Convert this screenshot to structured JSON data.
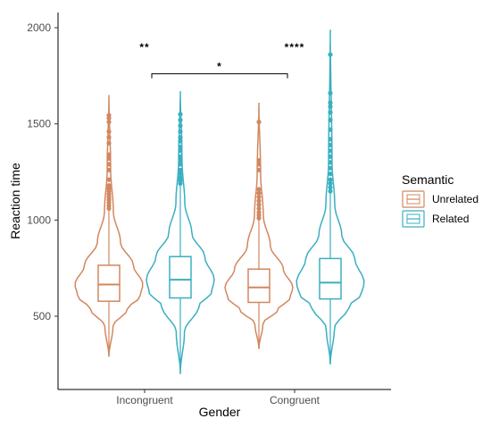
{
  "chart_data": {
    "type": "violin",
    "xlabel": "Gender",
    "ylabel": "Reaction time",
    "ylim": [
      200,
      2060
    ],
    "yticks": [
      500,
      1000,
      1500,
      2000
    ],
    "grid": false,
    "legend": {
      "title": "Semantic",
      "placement": "right",
      "entries": [
        "Unrelated",
        "Related"
      ]
    },
    "categories": [
      "Incongruent",
      "Congruent"
    ],
    "series": [
      {
        "name": "Unrelated",
        "color": "#D2875F",
        "groups": [
          {
            "category": "Incongruent",
            "min": 290,
            "max": 1650,
            "q1": 578,
            "median": 665,
            "q3": 765,
            "upper_whisker": 1050,
            "lower_whisker": 290,
            "outliers": [
              1060,
              1075,
              1090,
              1105,
              1120,
              1135,
              1150,
              1165,
              1180,
              1210,
              1260,
              1290,
              1320,
              1340,
              1400,
              1430,
              1460,
              1510,
              1530,
              1545
            ]
          },
          {
            "category": "Congruent",
            "min": 330,
            "max": 1610,
            "q1": 572,
            "median": 650,
            "q3": 745,
            "upper_whisker": 1000,
            "lower_whisker": 330,
            "outliers": [
              1010,
              1025,
              1040,
              1060,
              1080,
              1100,
              1120,
              1140,
              1160,
              1260,
              1290,
              1310,
              1510
            ]
          }
        ]
      },
      {
        "name": "Related",
        "color": "#3AAFC0",
        "groups": [
          {
            "category": "Incongruent",
            "min": 200,
            "max": 1670,
            "q1": 595,
            "median": 690,
            "q3": 810,
            "upper_whisker": 1180,
            "lower_whisker": 200,
            "outliers": [
              1190,
              1205,
              1220,
              1240,
              1260,
              1290,
              1310,
              1330,
              1360,
              1380,
              1410,
              1430,
              1460,
              1490,
              1520,
              1550
            ]
          },
          {
            "category": "Congruent",
            "min": 250,
            "max": 1990,
            "q1": 590,
            "median": 675,
            "q3": 800,
            "upper_whisker": 1140,
            "lower_whisker": 250,
            "outliers": [
              1150,
              1170,
              1190,
              1210,
              1240,
              1270,
              1300,
              1330,
              1360,
              1390,
              1420,
              1470,
              1520,
              1560,
              1590,
              1610,
              1660,
              1860
            ]
          }
        ]
      }
    ],
    "annotations": [
      {
        "text": "**",
        "category": "Incongruent",
        "y": 1880
      },
      {
        "text": "****",
        "category": "Congruent",
        "y": 1880
      },
      {
        "text": "*",
        "type": "bracket",
        "from": "Incongruent",
        "to": "Congruent",
        "y": 1760
      }
    ]
  }
}
